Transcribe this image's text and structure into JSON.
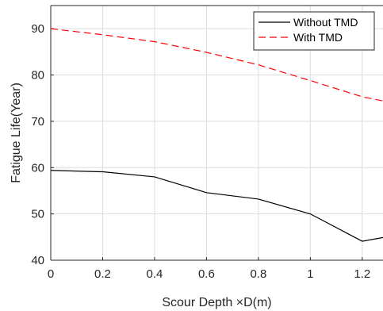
{
  "chart_data": {
    "type": "line",
    "xlabel": "Scour Depth ×D(m)",
    "ylabel": "Fatigue Life(Year)",
    "xlim": [
      0,
      1.28
    ],
    "ylim": [
      40,
      95
    ],
    "x_ticks": [
      "0",
      "0.2",
      "0.4",
      "0.6",
      "0.8",
      "1",
      "1.2"
    ],
    "y_ticks": [
      "40",
      "50",
      "60",
      "70",
      "80",
      "90"
    ],
    "grid": true,
    "legend_position": "top-right",
    "series": [
      {
        "name": "Without TMD",
        "color": "#000000",
        "line_style": "solid",
        "x": [
          0,
          0.2,
          0.4,
          0.6,
          0.8,
          1.0,
          1.2,
          1.28
        ],
        "y": [
          59.4,
          59.1,
          58.0,
          54.6,
          53.2,
          50.0,
          44.1,
          44.9
        ]
      },
      {
        "name": "With TMD",
        "color": "#ff0000",
        "line_style": "dashed",
        "x": [
          0,
          0.2,
          0.4,
          0.6,
          0.8,
          1.0,
          1.2,
          1.28
        ],
        "y": [
          90.0,
          88.7,
          87.2,
          84.9,
          82.2,
          78.8,
          75.3,
          74.4
        ]
      }
    ]
  }
}
